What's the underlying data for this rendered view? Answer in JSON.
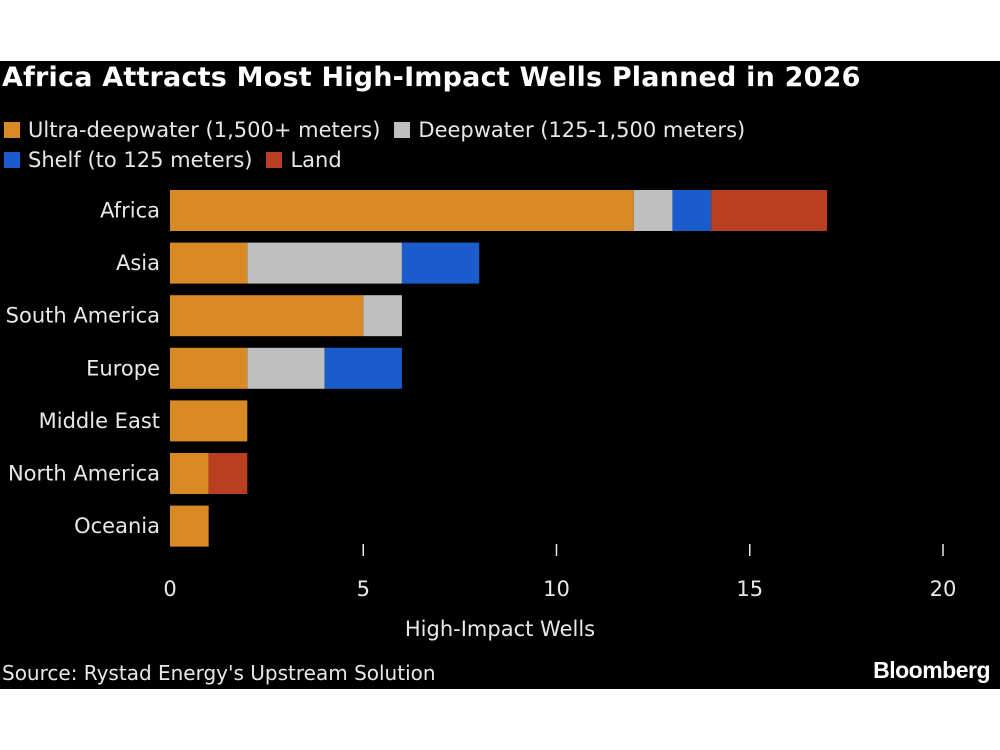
{
  "chart_data": {
    "type": "bar",
    "orientation": "horizontal",
    "stacked": true,
    "title": "Africa Attracts Most High-Impact Wells Planned in 2026",
    "xlabel": "High-Impact Wells",
    "ylabel": "",
    "xlim": [
      0,
      20
    ],
    "xticks": [
      0,
      5,
      10,
      15,
      20
    ],
    "grid": false,
    "legend_placement": "top-left",
    "categories": [
      "Africa",
      "Asia",
      "South America",
      "Europe",
      "Middle East",
      "North America",
      "Oceania"
    ],
    "series": [
      {
        "name": "Ultra-deepwater (1,500+ meters)",
        "color": "#d98a26",
        "values": [
          12,
          2,
          5,
          2,
          2,
          1,
          1
        ]
      },
      {
        "name": "Deepwater (125-1,500 meters)",
        "color": "#bfbfbf",
        "values": [
          1,
          4,
          1,
          2,
          0,
          0,
          0
        ]
      },
      {
        "name": "Shelf (to 125 meters)",
        "color": "#1a5ccc",
        "values": [
          1,
          2,
          0,
          2,
          0,
          0,
          0
        ]
      },
      {
        "name": "Land",
        "color": "#b83f1f",
        "values": [
          3,
          0,
          0,
          0,
          0,
          1,
          0
        ]
      }
    ],
    "source": "Source: Rystad Energy's Upstream Solution"
  },
  "branding": {
    "logo": "Bloomberg"
  },
  "colors": {
    "background": "#000000",
    "text": "#e8e8e8"
  }
}
